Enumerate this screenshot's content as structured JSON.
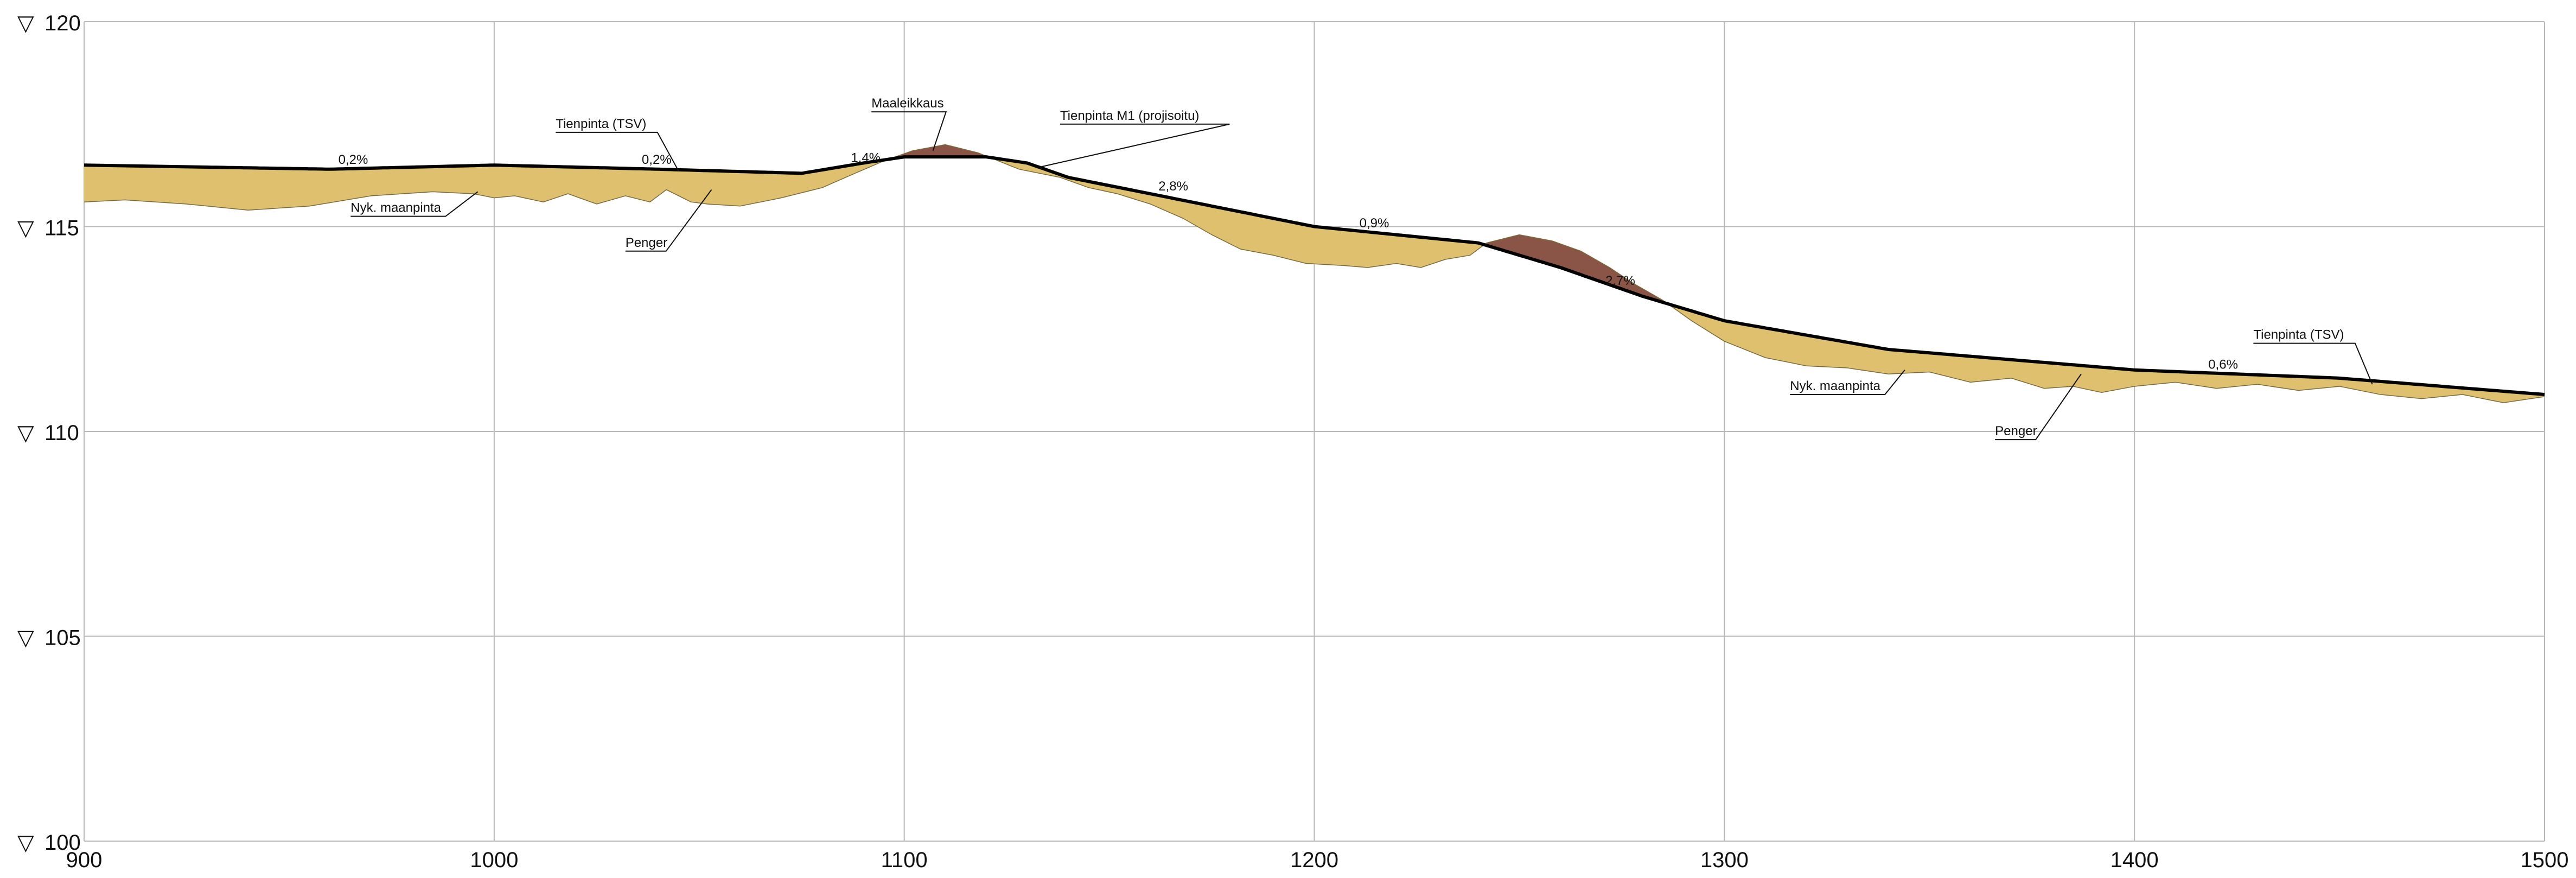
{
  "chart_data": {
    "type": "area",
    "title": "",
    "xlabel": "",
    "ylabel": "",
    "xlim": [
      900,
      1500
    ],
    "ylim": [
      100,
      120
    ],
    "grid": true,
    "x_ticks": [
      900,
      1000,
      1100,
      1200,
      1300,
      1400,
      1500
    ],
    "y_ticks": [
      100,
      105,
      110,
      115,
      120
    ],
    "y_tick_symbol": "▽",
    "colors": {
      "fill_embankment": "#dfc06e",
      "fill_soil_cut": "#8a5446",
      "road_line": "#000000",
      "grid": "#b8b8b8"
    },
    "series": [
      {
        "name": "Tienpinta (TSV)",
        "role": "road",
        "x": [
          900,
          960,
          1000,
          1040,
          1075,
          1090,
          1100,
          1110,
          1120,
          1130,
          1140,
          1160,
          1180,
          1200,
          1220,
          1240,
          1260,
          1280,
          1300,
          1340,
          1400,
          1450,
          1500
        ],
        "y": [
          116.5,
          116.4,
          116.5,
          116.4,
          116.3,
          116.55,
          116.7,
          116.7,
          116.7,
          116.55,
          116.2,
          115.8,
          115.4,
          115.0,
          114.8,
          114.6,
          114.0,
          113.3,
          112.7,
          112.0,
          111.5,
          111.3,
          110.9
        ]
      },
      {
        "name": "Nyk. maanpinta",
        "role": "ground",
        "x": [
          900,
          910,
          925,
          940,
          955,
          970,
          985,
          995,
          1000,
          1005,
          1012,
          1018,
          1025,
          1032,
          1038,
          1042,
          1048,
          1052,
          1060,
          1070,
          1080,
          1088,
          1095,
          1102,
          1110,
          1118,
          1128,
          1138,
          1145,
          1152,
          1160,
          1168,
          1175,
          1182,
          1190,
          1198,
          1207,
          1213,
          1220,
          1226,
          1232,
          1238,
          1242,
          1250,
          1258,
          1265,
          1272,
          1278,
          1285,
          1292,
          1300,
          1310,
          1320,
          1330,
          1340,
          1350,
          1360,
          1370,
          1378,
          1385,
          1392,
          1400,
          1410,
          1420,
          1430,
          1440,
          1450,
          1460,
          1470,
          1480,
          1490,
          1500
        ],
        "y": [
          115.6,
          115.65,
          115.55,
          115.4,
          115.5,
          115.75,
          115.85,
          115.8,
          115.7,
          115.75,
          115.6,
          115.8,
          115.55,
          115.75,
          115.6,
          115.9,
          115.6,
          115.55,
          115.5,
          115.7,
          115.95,
          116.3,
          116.6,
          116.85,
          117.0,
          116.8,
          116.4,
          116.2,
          115.95,
          115.8,
          115.55,
          115.2,
          114.8,
          114.45,
          114.3,
          114.1,
          114.05,
          114.0,
          114.1,
          114.0,
          114.2,
          114.3,
          114.6,
          114.8,
          114.65,
          114.4,
          114.0,
          113.6,
          113.2,
          112.7,
          112.2,
          111.8,
          111.6,
          111.55,
          111.4,
          111.45,
          111.2,
          111.3,
          111.05,
          111.1,
          110.95,
          111.1,
          111.2,
          111.05,
          111.15,
          111.0,
          111.1,
          110.9,
          110.8,
          110.9,
          110.7,
          110.85
        ]
      }
    ],
    "annotations": [
      {
        "text": "Tienpinta (TSV)",
        "x": 1045,
        "y": 116.35,
        "label_x": 1015,
        "label_y": 117.3
      },
      {
        "text": "Nyk. maanpinta",
        "x": 996,
        "y": 115.85,
        "label_x": 965,
        "label_y": 115.25
      },
      {
        "text": "Penger",
        "x": 1053,
        "y": 115.9,
        "label_x": 1032,
        "label_y": 114.4
      },
      {
        "text": "Maaleikkaus",
        "x": 1107,
        "y": 116.85,
        "label_x": 1092,
        "label_y": 117.8
      },
      {
        "text": "Tienpinta M1 (projisoitu)",
        "x": 1133,
        "y": 116.45,
        "label_x": 1138,
        "label_y": 117.5
      },
      {
        "text": "Nyk. maanpinta",
        "x": 1344,
        "y": 111.5,
        "label_x": 1316,
        "label_y": 110.9
      },
      {
        "text": "Penger",
        "x": 1387,
        "y": 111.4,
        "label_x": 1366,
        "label_y": 109.8
      },
      {
        "text": "Tienpinta (TSV)",
        "x": 1458,
        "y": 111.15,
        "label_x": 1429,
        "label_y": 112.15
      }
    ],
    "grade_labels": [
      {
        "text": "0,2%",
        "x": 962,
        "y": 116.45
      },
      {
        "text": "0,2%",
        "x": 1036,
        "y": 116.45
      },
      {
        "text": "1,4%",
        "x": 1087,
        "y": 116.5
      },
      {
        "text": "2,8%",
        "x": 1162,
        "y": 115.8
      },
      {
        "text": "0,9%",
        "x": 1211,
        "y": 114.9
      },
      {
        "text": "2,7%",
        "x": 1271,
        "y": 113.5
      },
      {
        "text": "0,6%",
        "x": 1418,
        "y": 111.45
      }
    ]
  }
}
